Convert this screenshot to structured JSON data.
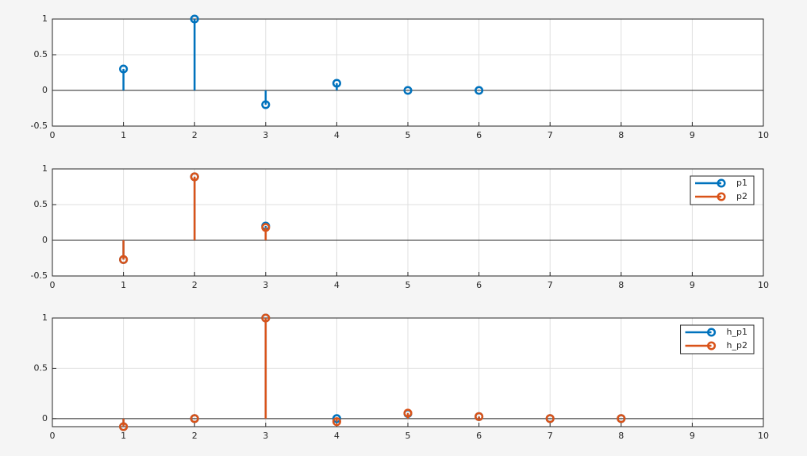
{
  "chart_data": [
    {
      "type": "stem",
      "x": [
        1,
        2,
        3,
        4,
        5,
        6
      ],
      "series": [
        {
          "color": "#0072bd",
          "values": [
            0.3,
            1,
            -0.2,
            0.1,
            0,
            0
          ]
        }
      ],
      "xlim": [
        0,
        10
      ],
      "xticks": [
        0,
        1,
        2,
        3,
        4,
        5,
        6,
        7,
        8,
        9,
        10
      ],
      "ylim": [
        -0.5,
        1
      ],
      "yticks": [
        -0.5,
        0,
        0.5,
        1
      ],
      "grid": true
    },
    {
      "type": "stem",
      "x": [
        1,
        2,
        3
      ],
      "series": [
        {
          "name": "p1",
          "color": "#0072bd",
          "values": [
            -0.27,
            0.89,
            0.2
          ]
        },
        {
          "name": "p2",
          "color": "#d95319",
          "values": [
            -0.27,
            0.89,
            0.18
          ]
        }
      ],
      "xlim": [
        0,
        10
      ],
      "xticks": [
        0,
        1,
        2,
        3,
        4,
        5,
        6,
        7,
        8,
        9,
        10
      ],
      "ylim": [
        -0.5,
        1
      ],
      "yticks": [
        -0.5,
        0,
        0.5,
        1
      ],
      "grid": true,
      "legend": "northeast"
    },
    {
      "type": "stem",
      "x": [
        1,
        2,
        3,
        4,
        5,
        6,
        7,
        8
      ],
      "series": [
        {
          "name": "h_p1",
          "color": "#0072bd",
          "values": [
            -0.08,
            0,
            1,
            0,
            0.05,
            0.02,
            0,
            0
          ]
        },
        {
          "name": "h_p2",
          "color": "#d95319",
          "values": [
            -0.08,
            0,
            1,
            -0.03,
            0.055,
            0.02,
            0,
            0
          ]
        }
      ],
      "xlim": [
        0,
        10
      ],
      "xticks": [
        0,
        1,
        2,
        3,
        4,
        5,
        6,
        7,
        8,
        9,
        10
      ],
      "ylim": [
        -0.08,
        1
      ],
      "yticks": [
        0,
        0.5,
        1
      ],
      "grid": true,
      "legend": "northeast"
    }
  ]
}
